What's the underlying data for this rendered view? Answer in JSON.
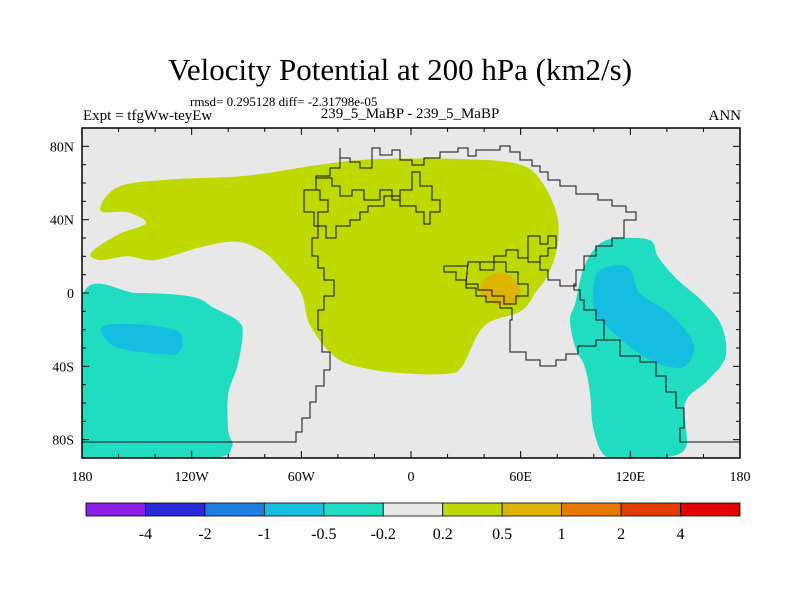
{
  "figure": {
    "title": "Velocity Potential at 200 hPa (km2/s)",
    "stats": "rmsd= 0.295128 diff= -2.31798e-05",
    "experiment": "Expt = tfgWw-teyEw",
    "cases": "239_5_MaBP - 239_5_MaBP",
    "season": "ANN"
  },
  "chart_data": {
    "type": "heatmap",
    "title": "Velocity Potential at 200 hPa (km2/s)",
    "units": "km2/s",
    "x_axis": {
      "range": [
        -180,
        180
      ],
      "ticks": [
        -180,
        -120,
        -60,
        0,
        60,
        120,
        180
      ],
      "tick_labels": [
        "180",
        "120W",
        "60W",
        "0",
        "60E",
        "120E",
        "180"
      ]
    },
    "y_axis": {
      "range": [
        -90,
        90
      ],
      "ticks": [
        80,
        40,
        0,
        -40,
        -80
      ],
      "tick_labels": [
        "80N",
        "40N",
        "0",
        "40S",
        "80S"
      ]
    },
    "colorbar": {
      "levels": [
        "-4",
        "-2",
        "-1",
        "-0.5",
        "-0.2",
        "0.2",
        "0.5",
        "1",
        "2",
        "4"
      ],
      "colors": [
        "#8b1fe6",
        "#2a2ad6",
        "#1c7fe0",
        "#15bde0",
        "#20dcc0",
        "#e8e8e8",
        "#bdd900",
        "#ddb400",
        "#e67a00",
        "#e23c00",
        "#e00000"
      ]
    },
    "regions": [
      {
        "level_index": 6,
        "label": "0.2 to 0.5",
        "polygon": [
          [
            -170,
            45
          ],
          [
            -160,
            58
          ],
          [
            -130,
            62
          ],
          [
            -90,
            64
          ],
          [
            -50,
            70
          ],
          [
            -20,
            73
          ],
          [
            30,
            73
          ],
          [
            60,
            70
          ],
          [
            72,
            60
          ],
          [
            80,
            42
          ],
          [
            80,
            25
          ],
          [
            75,
            10
          ],
          [
            68,
            0
          ],
          [
            60,
            -10
          ],
          [
            40,
            -18
          ],
          [
            28,
            -40
          ],
          [
            20,
            -44
          ],
          [
            0,
            -44
          ],
          [
            -20,
            -42
          ],
          [
            -40,
            -36
          ],
          [
            -55,
            -18
          ],
          [
            -60,
            0
          ],
          [
            -70,
            12
          ],
          [
            -80,
            22
          ],
          [
            -95,
            28
          ],
          [
            -115,
            25
          ],
          [
            -140,
            18
          ],
          [
            -155,
            20
          ],
          [
            -170,
            18
          ],
          [
            -175,
            22
          ],
          [
            -160,
            32
          ],
          [
            -145,
            38
          ],
          [
            -155,
            44
          ]
        ]
      },
      {
        "level_index": 7,
        "label": "0.5 to 1",
        "polygon": [
          [
            38,
            4
          ],
          [
            42,
            9
          ],
          [
            50,
            11
          ],
          [
            57,
            7
          ],
          [
            60,
            0
          ],
          [
            57,
            -5
          ],
          [
            50,
            -7
          ],
          [
            44,
            -5
          ],
          [
            39,
            -1
          ]
        ]
      },
      {
        "level_index": 4,
        "label": "-0.5 to -0.2",
        "polygon": [
          [
            -180,
            -2
          ],
          [
            -150,
            0
          ],
          -1,
          [
            -120,
            -2
          ],
          [
            -108,
            -8
          ],
          [
            -95,
            -15
          ],
          [
            -92,
            -22
          ],
          [
            -95,
            -40
          ],
          [
            -100,
            -55
          ],
          [
            -100,
            -75
          ],
          [
            -98,
            -84
          ],
          [
            -110,
            -90
          ],
          [
            -180,
            -90
          ]
        ]
      },
      {
        "level_index": 3,
        "label": "-1 to -0.5",
        "polygon": [
          [
            -168,
            -18
          ],
          [
            -150,
            -17
          ],
          [
            -130,
            -20
          ],
          [
            -125,
            -25
          ],
          [
            -128,
            -33
          ],
          [
            -140,
            -33
          ],
          [
            -160,
            -30
          ],
          [
            -168,
            -24
          ]
        ]
      },
      {
        "level_index": 4,
        "label": "-0.5 to -0.2",
        "polygon": [
          [
            90,
            -5
          ],
          [
            95,
            15
          ],
          [
            105,
            28
          ],
          [
            122,
            30
          ],
          [
            132,
            28
          ],
          [
            135,
            20
          ],
          [
            145,
            8
          ],
          [
            160,
            -5
          ],
          [
            170,
            -18
          ],
          [
            172,
            -35
          ],
          [
            162,
            -48
          ],
          [
            150,
            -60
          ],
          [
            150,
            -85
          ],
          [
            132,
            -90
          ],
          [
            108,
            -90
          ],
          [
            100,
            -75
          ],
          [
            98,
            -55
          ],
          [
            95,
            -40
          ],
          [
            90,
            -30
          ],
          [
            87,
            -15
          ]
        ]
      },
      {
        "level_index": 3,
        "label": "-1 to -0.5",
        "polygon": [
          [
            100,
            5
          ],
          [
            103,
            12
          ],
          [
            112,
            15
          ],
          [
            120,
            13
          ],
          [
            125,
            0
          ],
          [
            140,
            -10
          ],
          [
            150,
            -20
          ],
          [
            155,
            -30
          ],
          [
            150,
            -40
          ],
          [
            140,
            -40
          ],
          [
            130,
            -36
          ],
          [
            118,
            -28
          ],
          [
            105,
            -16
          ],
          [
            100,
            -8
          ]
        ]
      }
    ]
  }
}
